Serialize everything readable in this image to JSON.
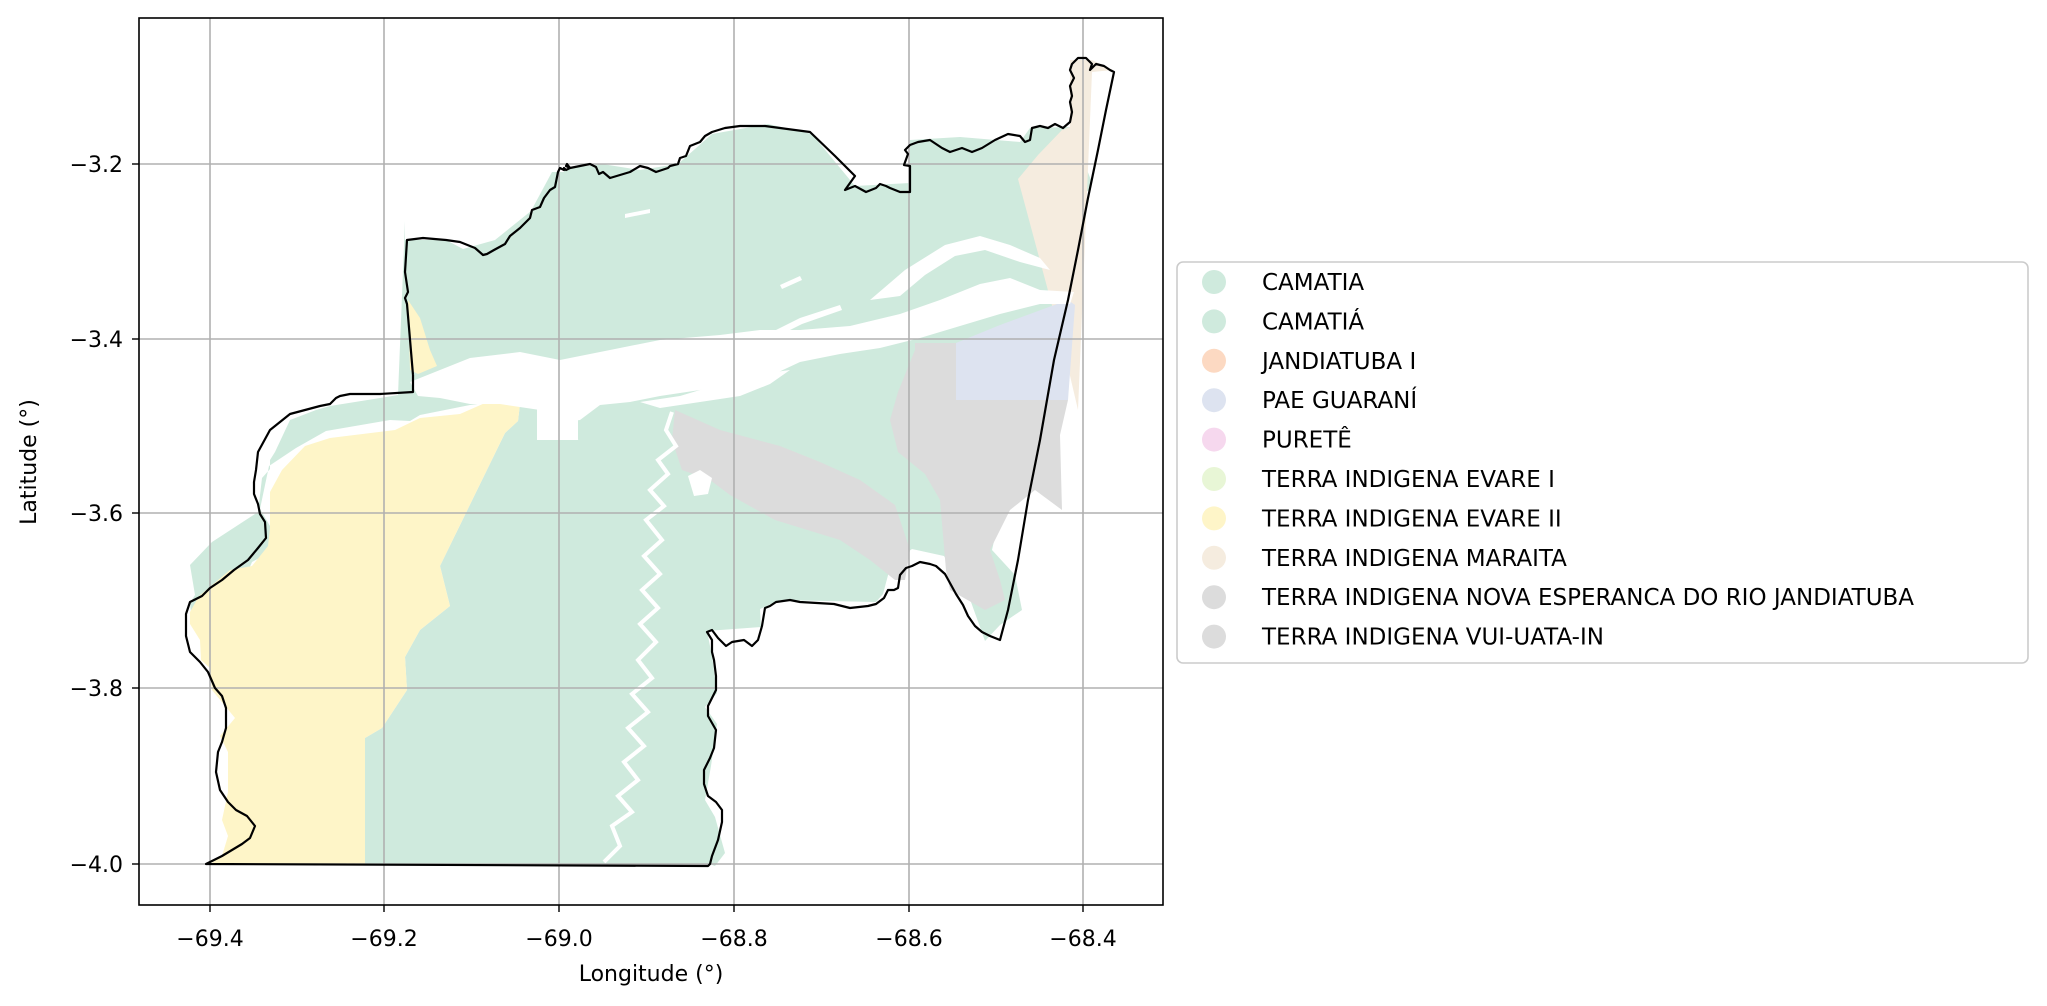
{
  "map": {
    "x_axis": {
      "label": "Longitude (°)",
      "ticks": [
        {
          "value": -69.4,
          "label": "−69.4"
        },
        {
          "value": -69.2,
          "label": "−69.2"
        },
        {
          "value": -69.0,
          "label": "−69.0"
        },
        {
          "value": -68.8,
          "label": "−68.8"
        },
        {
          "value": -68.6,
          "label": "−68.6"
        },
        {
          "value": -68.4,
          "label": "−68.4"
        }
      ],
      "range": [
        -69.48,
        -68.31
      ]
    },
    "y_axis": {
      "label": "Latitude (°)",
      "ticks": [
        {
          "value": -3.2,
          "label": "−3.2"
        },
        {
          "value": -3.4,
          "label": "−3.4"
        },
        {
          "value": -3.6,
          "label": "−3.6"
        },
        {
          "value": -3.8,
          "label": "−3.8"
        },
        {
          "value": -4.0,
          "label": "−4.0"
        }
      ],
      "range": [
        -4.05,
        -3.03
      ]
    },
    "grid": true,
    "legend_placement": "right",
    "colors": {
      "outline": "#000000",
      "gridline": "#b0b0b0",
      "river": "#ffffff"
    },
    "legend": [
      {
        "label": "CAMATIA",
        "color": "#cfeadd"
      },
      {
        "label": "CAMATIÁ",
        "color": "#cfeadd"
      },
      {
        "label": "JANDIATUBA I",
        "color": "#fcd9c2"
      },
      {
        "label": "PAE GUARANÍ",
        "color": "#dde3f0"
      },
      {
        "label": "PURETÊ",
        "color": "#f6d8ee"
      },
      {
        "label": "TERRA INDIGENA EVARE I",
        "color": "#e8f6d6"
      },
      {
        "label": "TERRA INDIGENA EVARE II",
        "color": "#fef5c8"
      },
      {
        "label": "TERRA INDIGENA MARAITA",
        "color": "#f5ecdf"
      },
      {
        "label": "TERRA INDIGENA NOVA ESPERANCA DO RIO JANDIATUBA",
        "color": "#dcdcdc"
      },
      {
        "label": "TERRA INDIGENA VUI-UATA-IN",
        "color": "#dcdcdc"
      }
    ]
  }
}
